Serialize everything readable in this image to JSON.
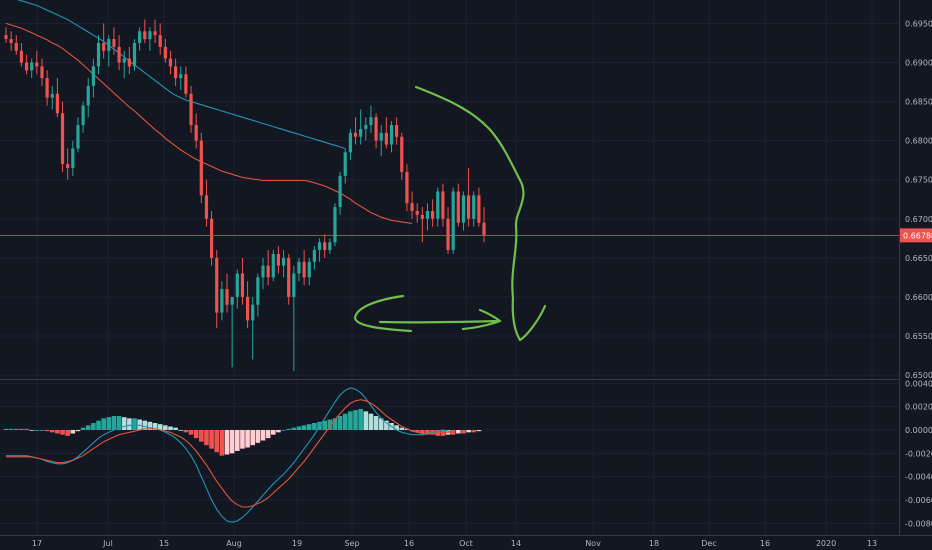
{
  "chart_data": [
    {
      "type": "candlestick",
      "title": "",
      "ylim": [
        0.6495,
        0.698
      ],
      "price_ticks": [
        "0.69500",
        "0.69000",
        "0.68500",
        "0.68000",
        "0.67500",
        "0.67000",
        "0.66500",
        "0.66000",
        "0.65500",
        "0.65000"
      ],
      "time_ticks": [
        "17",
        "Jul",
        "15",
        "Aug",
        "19",
        "Sep",
        "16",
        "Oct",
        "14",
        "Nov",
        "18",
        "Dec",
        "16",
        "2020",
        "13"
      ],
      "last_price": "0.66788",
      "colors": {
        "up": "#26a69a",
        "down": "#ef5350",
        "ma_fast": "#e0553b",
        "ma_slow": "#2196b4",
        "annotation": "#6fbf4a",
        "grid": "#1e2230",
        "text": "#b2b5be"
      },
      "candles": [
        [
          0.6935,
          0.6945,
          0.6925,
          0.693
        ],
        [
          0.693,
          0.694,
          0.6915,
          0.6925
        ],
        [
          0.6925,
          0.6935,
          0.691,
          0.6915
        ],
        [
          0.6915,
          0.6925,
          0.6895,
          0.69
        ],
        [
          0.69,
          0.691,
          0.6885,
          0.689
        ],
        [
          0.689,
          0.6905,
          0.688,
          0.69
        ],
        [
          0.69,
          0.6915,
          0.6885,
          0.6895
        ],
        [
          0.6895,
          0.6905,
          0.687,
          0.688
        ],
        [
          0.688,
          0.689,
          0.6845,
          0.6855
        ],
        [
          0.6855,
          0.687,
          0.684,
          0.686
        ],
        [
          0.686,
          0.688,
          0.683,
          0.6835
        ],
        [
          0.6835,
          0.685,
          0.676,
          0.677
        ],
        [
          0.677,
          0.679,
          0.675,
          0.6765
        ],
        [
          0.6765,
          0.68,
          0.6755,
          0.679
        ],
        [
          0.679,
          0.683,
          0.6785,
          0.682
        ],
        [
          0.682,
          0.685,
          0.681,
          0.6845
        ],
        [
          0.6845,
          0.688,
          0.683,
          0.687
        ],
        [
          0.687,
          0.6905,
          0.6855,
          0.6895
        ],
        [
          0.6895,
          0.6935,
          0.6885,
          0.6925
        ],
        [
          0.6925,
          0.695,
          0.6905,
          0.6915
        ],
        [
          0.6915,
          0.6935,
          0.6895,
          0.693
        ],
        [
          0.693,
          0.6945,
          0.691,
          0.692
        ],
        [
          0.692,
          0.6935,
          0.689,
          0.69
        ],
        [
          0.69,
          0.6915,
          0.688,
          0.6905
        ],
        [
          0.6905,
          0.692,
          0.6885,
          0.6895
        ],
        [
          0.6895,
          0.693,
          0.689,
          0.6925
        ],
        [
          0.6925,
          0.6945,
          0.6915,
          0.694
        ],
        [
          0.694,
          0.6955,
          0.6925,
          0.693
        ],
        [
          0.693,
          0.6945,
          0.6915,
          0.694
        ],
        [
          0.694,
          0.6955,
          0.6925,
          0.6935
        ],
        [
          0.6935,
          0.695,
          0.691,
          0.692
        ],
        [
          0.692,
          0.693,
          0.69,
          0.6905
        ],
        [
          0.6905,
          0.6915,
          0.6885,
          0.6895
        ],
        [
          0.6895,
          0.6905,
          0.687,
          0.688
        ],
        [
          0.688,
          0.6895,
          0.6865,
          0.6885
        ],
        [
          0.6885,
          0.6895,
          0.6855,
          0.686
        ],
        [
          0.686,
          0.687,
          0.681,
          0.682
        ],
        [
          0.682,
          0.6835,
          0.679,
          0.68
        ],
        [
          0.68,
          0.681,
          0.672,
          0.673
        ],
        [
          0.673,
          0.675,
          0.669,
          0.67
        ],
        [
          0.67,
          0.671,
          0.664,
          0.665
        ],
        [
          0.665,
          0.666,
          0.656,
          0.658
        ],
        [
          0.658,
          0.662,
          0.657,
          0.661
        ],
        [
          0.661,
          0.663,
          0.658,
          0.659
        ],
        [
          0.659,
          0.66,
          0.651,
          0.66
        ],
        [
          0.66,
          0.6635,
          0.6585,
          0.663
        ],
        [
          0.663,
          0.665,
          0.659,
          0.66
        ],
        [
          0.66,
          0.662,
          0.656,
          0.657
        ],
        [
          0.657,
          0.66,
          0.652,
          0.659
        ],
        [
          0.659,
          0.663,
          0.6575,
          0.6625
        ],
        [
          0.6625,
          0.665,
          0.661,
          0.664
        ],
        [
          0.664,
          0.666,
          0.6615,
          0.6625
        ],
        [
          0.6625,
          0.666,
          0.662,
          0.6655
        ],
        [
          0.6655,
          0.6665,
          0.663,
          0.664
        ],
        [
          0.664,
          0.666,
          0.6625,
          0.665
        ],
        [
          0.665,
          0.6655,
          0.659,
          0.66
        ],
        [
          0.66,
          0.664,
          0.6505,
          0.663
        ],
        [
          0.663,
          0.665,
          0.662,
          0.6645
        ],
        [
          0.6645,
          0.666,
          0.6615,
          0.6625
        ],
        [
          0.6625,
          0.665,
          0.6615,
          0.6645
        ],
        [
          0.6645,
          0.6665,
          0.6635,
          0.666
        ],
        [
          0.666,
          0.6675,
          0.6645,
          0.667
        ],
        [
          0.667,
          0.668,
          0.665,
          0.666
        ],
        [
          0.666,
          0.6675,
          0.6655,
          0.667
        ],
        [
          0.667,
          0.672,
          0.6665,
          0.6715
        ],
        [
          0.6715,
          0.676,
          0.6705,
          0.6755
        ],
        [
          0.6755,
          0.679,
          0.6745,
          0.6785
        ],
        [
          0.6785,
          0.6815,
          0.6775,
          0.681
        ],
        [
          0.681,
          0.683,
          0.6795,
          0.6805
        ],
        [
          0.6805,
          0.684,
          0.6795,
          0.6815
        ],
        [
          0.6815,
          0.683,
          0.68,
          0.682
        ],
        [
          0.682,
          0.6845,
          0.681,
          0.683
        ],
        [
          0.683,
          0.6835,
          0.679,
          0.68
        ],
        [
          0.68,
          0.682,
          0.678,
          0.681
        ],
        [
          0.681,
          0.683,
          0.679,
          0.6795
        ],
        [
          0.6795,
          0.6825,
          0.6785,
          0.682
        ],
        [
          0.682,
          0.683,
          0.6795,
          0.6805
        ],
        [
          0.6805,
          0.681,
          0.675,
          0.676
        ],
        [
          0.676,
          0.677,
          0.671,
          0.672
        ],
        [
          0.672,
          0.6735,
          0.67,
          0.671
        ],
        [
          0.671,
          0.672,
          0.6695,
          0.6705
        ],
        [
          0.6705,
          0.6715,
          0.667,
          0.67
        ],
        [
          0.67,
          0.672,
          0.6685,
          0.671
        ],
        [
          0.671,
          0.6725,
          0.669,
          0.67
        ],
        [
          0.67,
          0.674,
          0.669,
          0.6735
        ],
        [
          0.6735,
          0.6745,
          0.669,
          0.67
        ],
        [
          0.67,
          0.6715,
          0.6655,
          0.666
        ],
        [
          0.666,
          0.674,
          0.6655,
          0.6735
        ],
        [
          0.6735,
          0.6745,
          0.669,
          0.6695
        ],
        [
          0.6695,
          0.6735,
          0.6685,
          0.673
        ],
        [
          0.673,
          0.6765,
          0.669,
          0.67
        ],
        [
          0.67,
          0.6735,
          0.669,
          0.673
        ],
        [
          0.673,
          0.674,
          0.669,
          0.6695
        ],
        [
          0.6695,
          0.6715,
          0.667,
          0.6679
        ]
      ],
      "ma_fast": [
        0.695,
        0.6948,
        0.6946,
        0.6944,
        0.6941,
        0.6938,
        0.6935,
        0.6932,
        0.6929,
        0.6925,
        0.6922,
        0.6918,
        0.6913,
        0.6908,
        0.6903,
        0.6897,
        0.6891,
        0.6885,
        0.6879,
        0.6873,
        0.6867,
        0.6861,
        0.6855,
        0.6849,
        0.6843,
        0.6838,
        0.6832,
        0.6826,
        0.682,
        0.6814,
        0.6809,
        0.6803,
        0.6798,
        0.6793,
        0.6788,
        0.6784,
        0.678,
        0.6776,
        0.6773,
        0.677,
        0.6767,
        0.6764,
        0.6761,
        0.6759,
        0.6757,
        0.6755,
        0.6753,
        0.6752,
        0.6751,
        0.675,
        0.6749,
        0.6749,
        0.6749,
        0.6749,
        0.6749,
        0.6749,
        0.6749,
        0.6749,
        0.6749,
        0.6748,
        0.6746,
        0.6744,
        0.6742,
        0.6739,
        0.6736,
        0.6733,
        0.6729,
        0.6725,
        0.672,
        0.6716,
        0.6712,
        0.6708,
        0.6705,
        0.6702,
        0.67,
        0.6698,
        0.6697,
        0.6696,
        0.6695,
        0.6694
      ],
      "ma_slow": [
        0.6985,
        0.6983,
        0.6981,
        0.6979,
        0.6977,
        0.6975,
        0.6973,
        0.697,
        0.6967,
        0.6964,
        0.6961,
        0.6958,
        0.6955,
        0.6951,
        0.6947,
        0.6943,
        0.6939,
        0.6935,
        0.6931,
        0.6927,
        0.6922,
        0.6917,
        0.6912,
        0.6907,
        0.6902,
        0.6897,
        0.6892,
        0.6887,
        0.6882,
        0.6877,
        0.6872,
        0.6867,
        0.6862,
        0.6858,
        0.6855,
        0.6852,
        0.685,
        0.6848,
        0.6846,
        0.6844,
        0.6842,
        0.684,
        0.6838,
        0.6836,
        0.6834,
        0.6832,
        0.683,
        0.6828,
        0.6826,
        0.6824,
        0.6822,
        0.682,
        0.6818,
        0.6816,
        0.6814,
        0.6812,
        0.681,
        0.6808,
        0.6806,
        0.6804,
        0.6802,
        0.68,
        0.6798,
        0.6796,
        0.6794,
        0.6792,
        0.679
      ]
    },
    {
      "type": "macd",
      "ylim": [
        -0.009,
        0.0042
      ],
      "y_ticks": [
        "0.00400",
        "0.00200",
        "0.00000",
        "-0.00200",
        "-0.00400",
        "-0.00600",
        "-0.00800"
      ],
      "histogram": [
        0.0001,
        0.0001,
        0.0001,
        0.0001,
        0.0001,
        0.0,
        0.0,
        0.0,
        -0.0001,
        -0.0002,
        -0.0003,
        -0.0004,
        -0.0005,
        -0.0003,
        -0.0001,
        0.0002,
        0.0004,
        0.0006,
        0.0008,
        0.001,
        0.0011,
        0.0012,
        0.0012,
        0.0011,
        0.001,
        0.001,
        0.0009,
        0.0008,
        0.0007,
        0.0006,
        0.0005,
        0.0004,
        0.0003,
        0.0002,
        0.0,
        -0.0002,
        -0.0004,
        -0.0007,
        -0.001,
        -0.0013,
        -0.0016,
        -0.0019,
        -0.0022,
        -0.0021,
        -0.002,
        -0.0018,
        -0.0016,
        -0.0015,
        -0.0013,
        -0.0011,
        -0.0009,
        -0.0007,
        -0.0004,
        -0.0002,
        0.0,
        0.0001,
        0.0002,
        0.0003,
        0.0004,
        0.0005,
        0.0006,
        0.0007,
        0.0008,
        0.0009,
        0.001,
        0.0012,
        0.0014,
        0.0016,
        0.0017,
        0.0018,
        0.0016,
        0.0014,
        0.0012,
        0.001,
        0.0008,
        0.0006,
        0.0004,
        0.0002,
        0.0001,
        -0.0001,
        -0.0002,
        -0.0003,
        -0.0004,
        -0.0004,
        -0.0005,
        -0.0005,
        -0.0004,
        -0.0004,
        -0.0003,
        -0.0003,
        -0.0002,
        -0.0002,
        -0.0001
      ],
      "macd_line": [
        -0.0022,
        -0.0022,
        -0.0022,
        -0.0022,
        -0.0022,
        -0.0023,
        -0.0024,
        -0.0025,
        -0.0027,
        -0.0028,
        -0.0029,
        -0.0029,
        -0.0028,
        -0.0026,
        -0.0023,
        -0.0019,
        -0.0015,
        -0.0011,
        -0.0007,
        -0.0004,
        -0.0002,
        0.0,
        0.0002,
        0.0003,
        0.0004,
        0.0004,
        0.0004,
        0.0003,
        0.0002,
        0.0001,
        0.0,
        -0.0002,
        -0.0004,
        -0.0007,
        -0.0011,
        -0.0016,
        -0.0022,
        -0.003,
        -0.004,
        -0.005,
        -0.006,
        -0.0068,
        -0.0074,
        -0.0078,
        -0.0079,
        -0.0078,
        -0.0075,
        -0.0071,
        -0.0066,
        -0.0061,
        -0.0056,
        -0.0051,
        -0.0046,
        -0.0042,
        -0.0038,
        -0.0033,
        -0.0028,
        -0.0022,
        -0.0016,
        -0.001,
        -0.0004,
        0.0003,
        0.001,
        0.0017,
        0.0024,
        0.003,
        0.0034,
        0.0036,
        0.0035,
        0.0032,
        0.0027,
        0.0021,
        0.0015,
        0.001,
        0.0006,
        0.0003,
        0.0,
        -0.0002,
        -0.0003,
        -0.0004,
        -0.0004,
        -0.0004,
        -0.0003,
        -0.0002,
        -0.0001,
        0.0,
        -0.0001,
        -0.0002
      ],
      "signal_line": [
        -0.0023,
        -0.0023,
        -0.0023,
        -0.0023,
        -0.0023,
        -0.0023,
        -0.0024,
        -0.0025,
        -0.0026,
        -0.0027,
        -0.0028,
        -0.0028,
        -0.0027,
        -0.0026,
        -0.0024,
        -0.0022,
        -0.0019,
        -0.0016,
        -0.0013,
        -0.001,
        -0.0008,
        -0.0006,
        -0.0004,
        -0.0003,
        -0.0002,
        -0.0001,
        0.0,
        0.0001,
        0.0001,
        0.0001,
        0.0,
        -0.0001,
        -0.0002,
        -0.0004,
        -0.0006,
        -0.0009,
        -0.0013,
        -0.0018,
        -0.0024,
        -0.003,
        -0.0037,
        -0.0044,
        -0.005,
        -0.0056,
        -0.0061,
        -0.0064,
        -0.0066,
        -0.0066,
        -0.0065,
        -0.0063,
        -0.0061,
        -0.0058,
        -0.0054,
        -0.005,
        -0.0046,
        -0.0042,
        -0.0037,
        -0.0032,
        -0.0027,
        -0.0021,
        -0.0015,
        -0.0009,
        -0.0003,
        0.0003,
        0.0009,
        0.0014,
        0.0019,
        0.0023,
        0.0025,
        0.0026,
        0.0025,
        0.0023,
        0.002,
        0.0016,
        0.0012,
        0.0009,
        0.0006,
        0.0003,
        0.0001,
        -0.0001,
        -0.0002,
        -0.0003,
        -0.0003,
        -0.0003,
        -0.0003,
        -0.0002,
        -0.0002,
        -0.0002
      ]
    }
  ]
}
